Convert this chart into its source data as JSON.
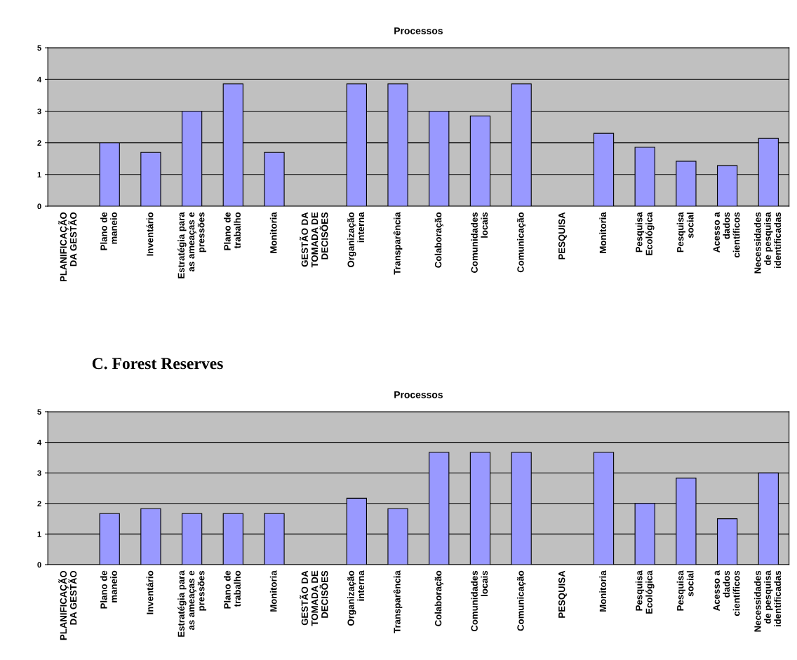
{
  "chart_data": [
    {
      "type": "bar",
      "title": "Processos",
      "categories": [
        "PLANIFICAÇÃO\nDA GESTÃO",
        "Plano de\nmaneio",
        "Inventário",
        "Estratégia para\nas ameaças e\npressões",
        "Plano de\ntrabalho",
        "Monitoria",
        "GESTÃO DA\nTOMADA DE\nDECISÕES",
        "Organização\ninterna",
        "Transparência",
        "Colaboração",
        "Comunidades\nlocais",
        "Comunicação",
        "PESQUISA",
        "Monitoria",
        "Pesquisa\nEcológica",
        "Pesquisa\nsocial",
        "Acesso a\ndados\ncientíficos",
        "Necessidades\nde pesquisa\nidentificadas"
      ],
      "values": [
        null,
        2,
        1.7,
        3,
        3.86,
        1.7,
        null,
        3.86,
        3.86,
        3,
        2.85,
        3.86,
        null,
        2.3,
        1.86,
        1.42,
        1.28,
        2.14
      ],
      "color": "#9999ff",
      "ylim": [
        0,
        5
      ],
      "yticks": [
        0,
        1,
        2,
        3,
        4,
        5
      ],
      "grid": "y"
    },
    {
      "type": "bar",
      "title": "Processos",
      "annotations": [
        "C. Forest Reserves"
      ],
      "categories": [
        "PLANIFICAÇÃO\nDA GESTÃO",
        "Plano de\nmaneio",
        "Inventário",
        "Estratégia para\nas ameaças e\npressões",
        "Plano de\ntrabalho",
        "Monitoria",
        "GESTÃO DA\nTOMADA DE\nDECISÕES",
        "Organização\ninterna",
        "Transparência",
        "Colaboração",
        "Comunidades\nlocais",
        "Comunicação",
        "PESQUISA",
        "Monitoria",
        "Pesquisa\nEcológica",
        "Pesquisa\nsocial",
        "Acesso a\ndados\ncientíficos",
        "Necessidades\nde pesquisa\nidentificadas"
      ],
      "values": [
        null,
        1.67,
        1.83,
        1.67,
        1.67,
        1.67,
        null,
        2.17,
        1.83,
        3.67,
        3.67,
        3.67,
        null,
        3.67,
        2,
        2.83,
        1.5,
        3
      ],
      "color": "#9999ff",
      "ylim": [
        0,
        5
      ],
      "yticks": [
        0,
        1,
        2,
        3,
        4,
        5
      ],
      "grid": "y"
    }
  ]
}
